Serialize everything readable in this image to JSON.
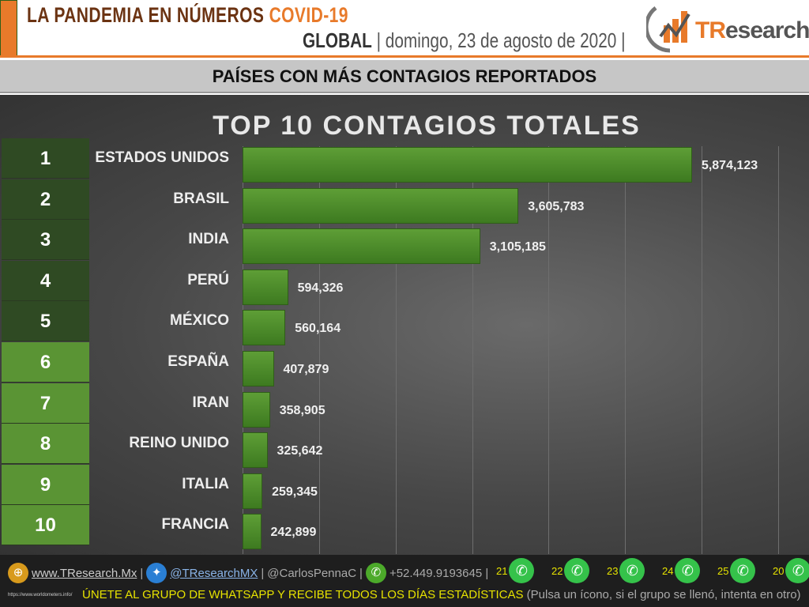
{
  "header": {
    "title": "LA PANDEMIA EN NÚMEROS",
    "title_accent": "COVID-19",
    "scope": "GLOBAL",
    "date": "| domingo, 23 de agosto de 2020 |",
    "logo_text_accent": "TR",
    "logo_text": "esearch"
  },
  "subtitle": "PAÍSES CON MÁS CONTAGIOS REPORTADOS",
  "colors": {
    "accent": "#e87a2a",
    "bar": "#4f8c2b",
    "rank_dark": "#2f4a23",
    "rank_light": "#5a9434"
  },
  "chart_data": {
    "type": "bar",
    "orientation": "horizontal",
    "title": "TOP 10 CONTAGIOS TOTALES",
    "ranks": [
      "1",
      "2",
      "3",
      "4",
      "5",
      "6",
      "7",
      "8",
      "9",
      "10"
    ],
    "categories": [
      "ESTADOS UNIDOS",
      "BRASIL",
      "INDIA",
      "PERÚ",
      "MÉXICO",
      "ESPAÑA",
      "IRAN",
      "REINO UNIDO",
      "ITALIA",
      "FRANCIA"
    ],
    "values": [
      5874123,
      3605783,
      3105185,
      594326,
      560164,
      407879,
      358905,
      325642,
      259345,
      242899
    ],
    "labels": [
      "5,874,123",
      "3,605,783",
      "3,105,185",
      "594,326",
      "560,164",
      "407,879",
      "358,905",
      "325,642",
      "259,345",
      "242,899"
    ],
    "xlim": [
      0,
      7000000
    ],
    "grid": true
  },
  "footer": {
    "website": "www.TResearch.Mx",
    "twitter": "@TResearchMX",
    "twitter2": "@CarlosPennaC",
    "phone": "+52.449.9193645 |",
    "groups": [
      "21",
      "22",
      "23",
      "24",
      "25",
      "20"
    ],
    "source": "https://www.worldometers.info/",
    "cta": "ÚNETE AL GRUPO DE WHATSAPP Y RECIBE TODOS LOS DÍAS ESTADÍSTICAS",
    "cta_note": "(Pulsa un ícono, si el grupo se llenó, intenta en otro)"
  }
}
